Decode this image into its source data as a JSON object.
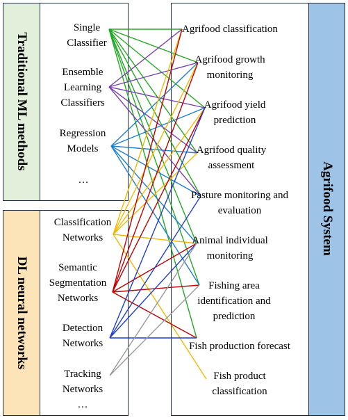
{
  "groups": {
    "ml": {
      "title": "Traditional ML methods",
      "color": "#e2efda"
    },
    "dl": {
      "title": "DL neural networks",
      "color": "#fce4b8"
    },
    "system": {
      "title": "Agrifood System",
      "color": "#9dc3e6"
    }
  },
  "methods": [
    {
      "id": "m1",
      "lines": [
        "Single",
        "Classifier"
      ]
    },
    {
      "id": "m2",
      "lines": [
        "Ensemble",
        "Learning",
        "Classifiers"
      ]
    },
    {
      "id": "m3",
      "lines": [
        "Regression",
        "Models"
      ]
    },
    {
      "id": "m4",
      "lines": [
        "…"
      ]
    },
    {
      "id": "m5",
      "lines": [
        "Classification",
        "Networks"
      ]
    },
    {
      "id": "m6",
      "lines": [
        "Semantic",
        "Segmentation",
        "Networks"
      ]
    },
    {
      "id": "m7",
      "lines": [
        "Detection",
        "Networks"
      ]
    },
    {
      "id": "m8",
      "lines": [
        "Tracking",
        "Networks",
        "…"
      ]
    }
  ],
  "applications": [
    {
      "id": "a1",
      "lines": [
        "Agrifood classification"
      ]
    },
    {
      "id": "a2",
      "lines": [
        "Agrifood growth",
        "monitoring"
      ]
    },
    {
      "id": "a3",
      "lines": [
        "Agrifood yield",
        "prediction"
      ]
    },
    {
      "id": "a4",
      "lines": [
        "Agrifood quality",
        "assessment"
      ]
    },
    {
      "id": "a5",
      "lines": [
        "Pasture monitoring and",
        "evaluation"
      ]
    },
    {
      "id": "a6",
      "lines": [
        "Animal individual",
        "monitoring"
      ]
    },
    {
      "id": "a7",
      "lines": [
        "Fishing area",
        "identification and",
        "prediction"
      ]
    },
    {
      "id": "a8",
      "lines": [
        "Fish production forecast"
      ]
    },
    {
      "id": "a9",
      "lines": [
        "Fish product",
        "classification"
      ]
    }
  ],
  "links": [
    {
      "from": "m1",
      "to": "a1",
      "color": "#22aa22"
    },
    {
      "from": "m1",
      "to": "a2",
      "color": "#22aa22"
    },
    {
      "from": "m1",
      "to": "a3",
      "color": "#22aa22"
    },
    {
      "from": "m1",
      "to": "a4",
      "color": "#22aa22"
    },
    {
      "from": "m1",
      "to": "a5",
      "color": "#22aa22"
    },
    {
      "from": "m1",
      "to": "a6",
      "color": "#22aa22"
    },
    {
      "from": "m1",
      "to": "a7",
      "color": "#22aa22"
    },
    {
      "from": "m1",
      "to": "a8",
      "color": "#22aa22"
    },
    {
      "from": "m2",
      "to": "a1",
      "color": "#7a3fb0"
    },
    {
      "from": "m2",
      "to": "a2",
      "color": "#7a3fb0"
    },
    {
      "from": "m2",
      "to": "a3",
      "color": "#7a3fb0"
    },
    {
      "from": "m2",
      "to": "a4",
      "color": "#7a3fb0"
    },
    {
      "from": "m2",
      "to": "a5",
      "color": "#7a3fb0"
    },
    {
      "from": "m3",
      "to": "a2",
      "color": "#1f7fd0"
    },
    {
      "from": "m3",
      "to": "a3",
      "color": "#1f7fd0"
    },
    {
      "from": "m3",
      "to": "a4",
      "color": "#1f7fd0"
    },
    {
      "from": "m3",
      "to": "a5",
      "color": "#1f7fd0"
    },
    {
      "from": "m3",
      "to": "a6",
      "color": "#1f7fd0"
    },
    {
      "from": "m3",
      "to": "a7",
      "color": "#1f7fd0"
    },
    {
      "from": "m5",
      "to": "a1",
      "color": "#f5b800"
    },
    {
      "from": "m5",
      "to": "a2",
      "color": "#f5b800"
    },
    {
      "from": "m5",
      "to": "a3",
      "color": "#f5b800"
    },
    {
      "from": "m5",
      "to": "a4",
      "color": "#f5b800"
    },
    {
      "from": "m5",
      "to": "a6",
      "color": "#f5b800"
    },
    {
      "from": "m5",
      "to": "a9",
      "color": "#f5b800"
    },
    {
      "from": "m6",
      "to": "a1",
      "color": "#c00000"
    },
    {
      "from": "m6",
      "to": "a2",
      "color": "#c00000"
    },
    {
      "from": "m6",
      "to": "a3",
      "color": "#c00000"
    },
    {
      "from": "m6",
      "to": "a6",
      "color": "#c00000"
    },
    {
      "from": "m6",
      "to": "a7",
      "color": "#c00000"
    },
    {
      "from": "m6",
      "to": "a8",
      "color": "#c00000"
    },
    {
      "from": "m7",
      "to": "a3",
      "color": "#1f3fd0"
    },
    {
      "from": "m7",
      "to": "a5",
      "color": "#1f3fd0"
    },
    {
      "from": "m7",
      "to": "a6",
      "color": "#1f3fd0"
    },
    {
      "from": "m7",
      "to": "a8",
      "color": "#1f3fd0"
    },
    {
      "from": "m8",
      "to": "a6",
      "color": "#999999"
    },
    {
      "from": "m8",
      "to": "a7",
      "color": "#999999"
    }
  ]
}
